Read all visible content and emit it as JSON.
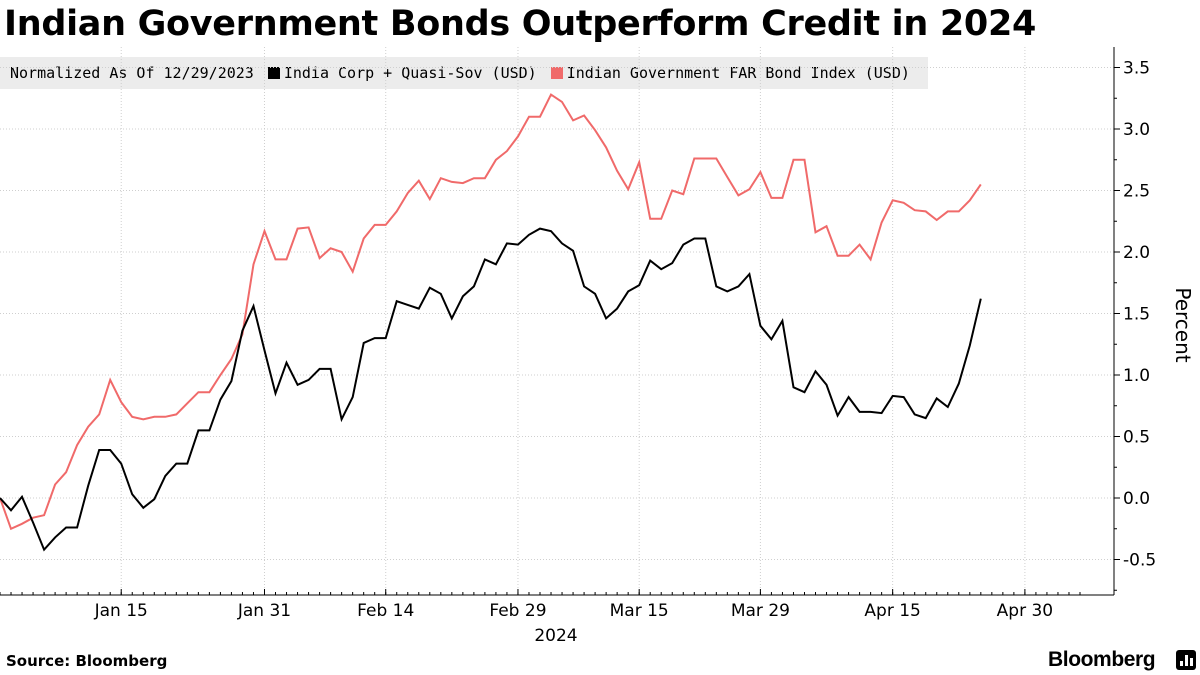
{
  "title": "Indian Government Bonds Outperform Credit in 2024",
  "legend": {
    "note": "Normalized As Of 12/29/2023",
    "items": [
      {
        "label": "India Corp + Quasi-Sov (USD)",
        "color": "#000000"
      },
      {
        "label": "Indian Government FAR Bond Index (USD)",
        "color": "#f06a6a"
      }
    ]
  },
  "source": "Source: Bloomberg",
  "brand": "Bloomberg",
  "chart_data": {
    "type": "line",
    "ylabel": "Percent",
    "ylim": [
      -0.8,
      3.65
    ],
    "yticks": [
      -0.5,
      0.0,
      0.5,
      1.0,
      1.5,
      2.0,
      2.5,
      3.0,
      3.5
    ],
    "ytick_labels": [
      "-0.5",
      "0.0",
      "0.5",
      "1.0",
      "1.5",
      "2.0",
      "2.5",
      "3.0",
      "3.5"
    ],
    "x_year_label": "2024",
    "xticks": [
      {
        "index": 11,
        "label": "Jan 15"
      },
      {
        "index": 24,
        "label": "Jan 31"
      },
      {
        "index": 35,
        "label": "Feb 14"
      },
      {
        "index": 47,
        "label": "Feb 29"
      },
      {
        "index": 58,
        "label": "Mar 15"
      },
      {
        "index": 69,
        "label": "Mar 29"
      },
      {
        "index": 81,
        "label": "Apr 15"
      },
      {
        "index": 93,
        "label": "Apr 30"
      }
    ],
    "x_count": 99,
    "series": [
      {
        "name": "India Corp + Quasi-Sov (USD)",
        "color": "#000000",
        "values": [
          0.0,
          -0.1,
          0.01,
          -0.2,
          -0.42,
          -0.32,
          -0.24,
          -0.24,
          0.1,
          0.39,
          0.39,
          0.28,
          0.03,
          -0.08,
          -0.01,
          0.18,
          0.28,
          0.28,
          0.55,
          0.55,
          0.8,
          0.95,
          1.36,
          1.56,
          1.2,
          0.85,
          1.1,
          0.92,
          0.96,
          1.05,
          1.05,
          0.64,
          0.82,
          1.26,
          1.3,
          1.3,
          1.6,
          1.57,
          1.54,
          1.71,
          1.66,
          1.46,
          1.64,
          1.72,
          1.94,
          1.9,
          2.07,
          2.06,
          2.14,
          2.19,
          2.17,
          2.07,
          2.01,
          1.72,
          1.66,
          1.46,
          1.54,
          1.68,
          1.73,
          1.93,
          1.86,
          1.91,
          2.06,
          2.11,
          2.11,
          1.72,
          1.68,
          1.72,
          1.82,
          1.4,
          1.29,
          1.44,
          0.9,
          0.86,
          1.03,
          0.92,
          0.67,
          0.82,
          0.7,
          0.7,
          0.69,
          0.83,
          0.82,
          0.68,
          0.65,
          0.81,
          0.74,
          0.93,
          1.24,
          1.62
        ]
      },
      {
        "name": "Indian Government FAR Bond Index (USD)",
        "color": "#f06a6a",
        "values": [
          0.0,
          -0.25,
          -0.21,
          -0.16,
          -0.14,
          0.11,
          0.21,
          0.43,
          0.58,
          0.68,
          0.96,
          0.78,
          0.66,
          0.64,
          0.66,
          0.66,
          0.68,
          0.77,
          0.86,
          0.86,
          1.0,
          1.13,
          1.33,
          1.9,
          2.17,
          1.94,
          1.94,
          2.19,
          2.2,
          1.95,
          2.03,
          2.0,
          1.84,
          2.11,
          2.22,
          2.22,
          2.33,
          2.48,
          2.58,
          2.43,
          2.6,
          2.57,
          2.56,
          2.6,
          2.6,
          2.75,
          2.82,
          2.94,
          3.1,
          3.1,
          3.28,
          3.22,
          3.07,
          3.11,
          2.99,
          2.85,
          2.66,
          2.51,
          2.73,
          2.27,
          2.27,
          2.5,
          2.47,
          2.76,
          2.76,
          2.76,
          2.61,
          2.46,
          2.51,
          2.65,
          2.44,
          2.44,
          2.75,
          2.75,
          2.16,
          2.21,
          1.97,
          1.97,
          2.06,
          1.94,
          2.24,
          2.42,
          2.4,
          2.34,
          2.33,
          2.26,
          2.33,
          2.33,
          2.42,
          2.55
        ]
      }
    ]
  }
}
